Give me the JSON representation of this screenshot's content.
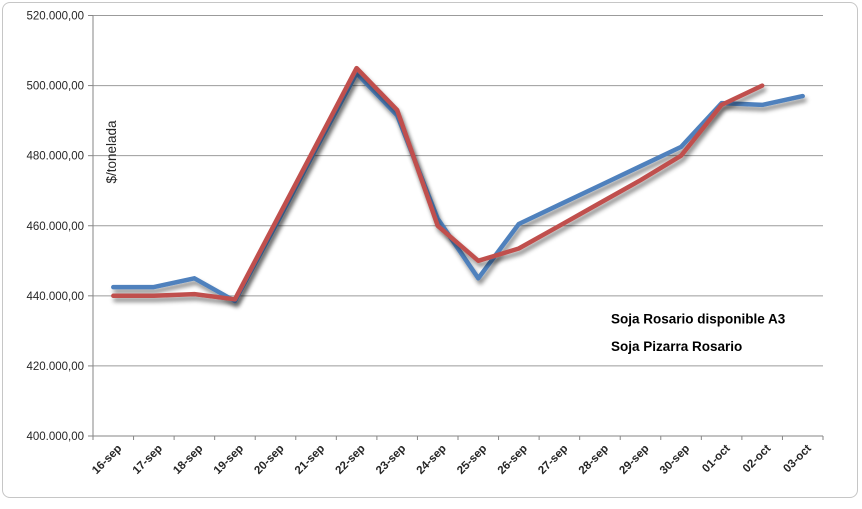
{
  "window": {
    "background": "#ffffff",
    "frame_border_color": "#c6c6c6"
  },
  "chart_data": {
    "type": "line",
    "title": "",
    "xlabel": "",
    "ylabel": "$/tonelada",
    "categories": [
      "16-sep",
      "17-sep",
      "18-sep",
      "19-sep",
      "20-sep",
      "21-sep",
      "22-sep",
      "23-sep",
      "24-sep",
      "25-sep",
      "26-sep",
      "27-sep",
      "28-sep",
      "29-sep",
      "30-sep",
      "01-oct",
      "02-oct",
      "03-oct"
    ],
    "series": [
      {
        "name": "Soja Rosario disponible A3",
        "color": "#4F81BD",
        "values": [
          442500,
          442500,
          445000,
          438500,
          460000,
          482000,
          503500,
          491500,
          462000,
          445000,
          460500,
          466000,
          471500,
          477000,
          482500,
          495000,
          494500,
          497000
        ]
      },
      {
        "name": "Soja Pizarra Rosario",
        "color": "#C0504D",
        "values": [
          440000,
          440000,
          440500,
          439000,
          461000,
          483000,
          505000,
          493000,
          460000,
          450000,
          453500,
          460000,
          466500,
          473000,
          480000,
          494500,
          500000,
          null
        ]
      }
    ],
    "ylim": [
      400000,
      520000
    ],
    "ytick_step": 20000,
    "ytick_labels": [
      "400.000,00",
      "420.000,00",
      "440.000,00",
      "460.000,00",
      "480.000,00",
      "500.000,00",
      "520.000,00"
    ],
    "grid": true,
    "legend_position": "inside-right",
    "legend_text_color": "#000000",
    "axis_color": "#868686",
    "grid_color": "#9b9b9b",
    "text_color": "#262626"
  }
}
